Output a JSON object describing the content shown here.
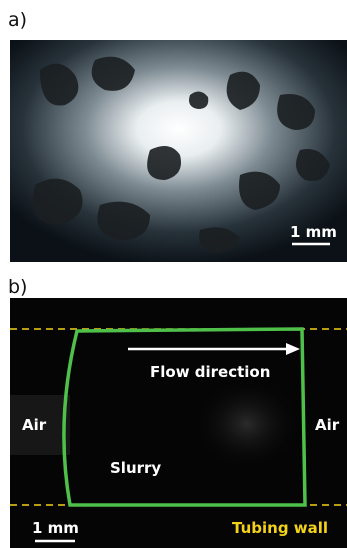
{
  "panel_a": {
    "label": "a)",
    "scale_bar": "1 mm"
  },
  "panel_b": {
    "label": "b)",
    "flow": "Flow direction",
    "air_left": "Air",
    "air_right": "Air",
    "slurry": "Slurry",
    "scale_bar": "1 mm",
    "wall": "Tubing wall"
  }
}
